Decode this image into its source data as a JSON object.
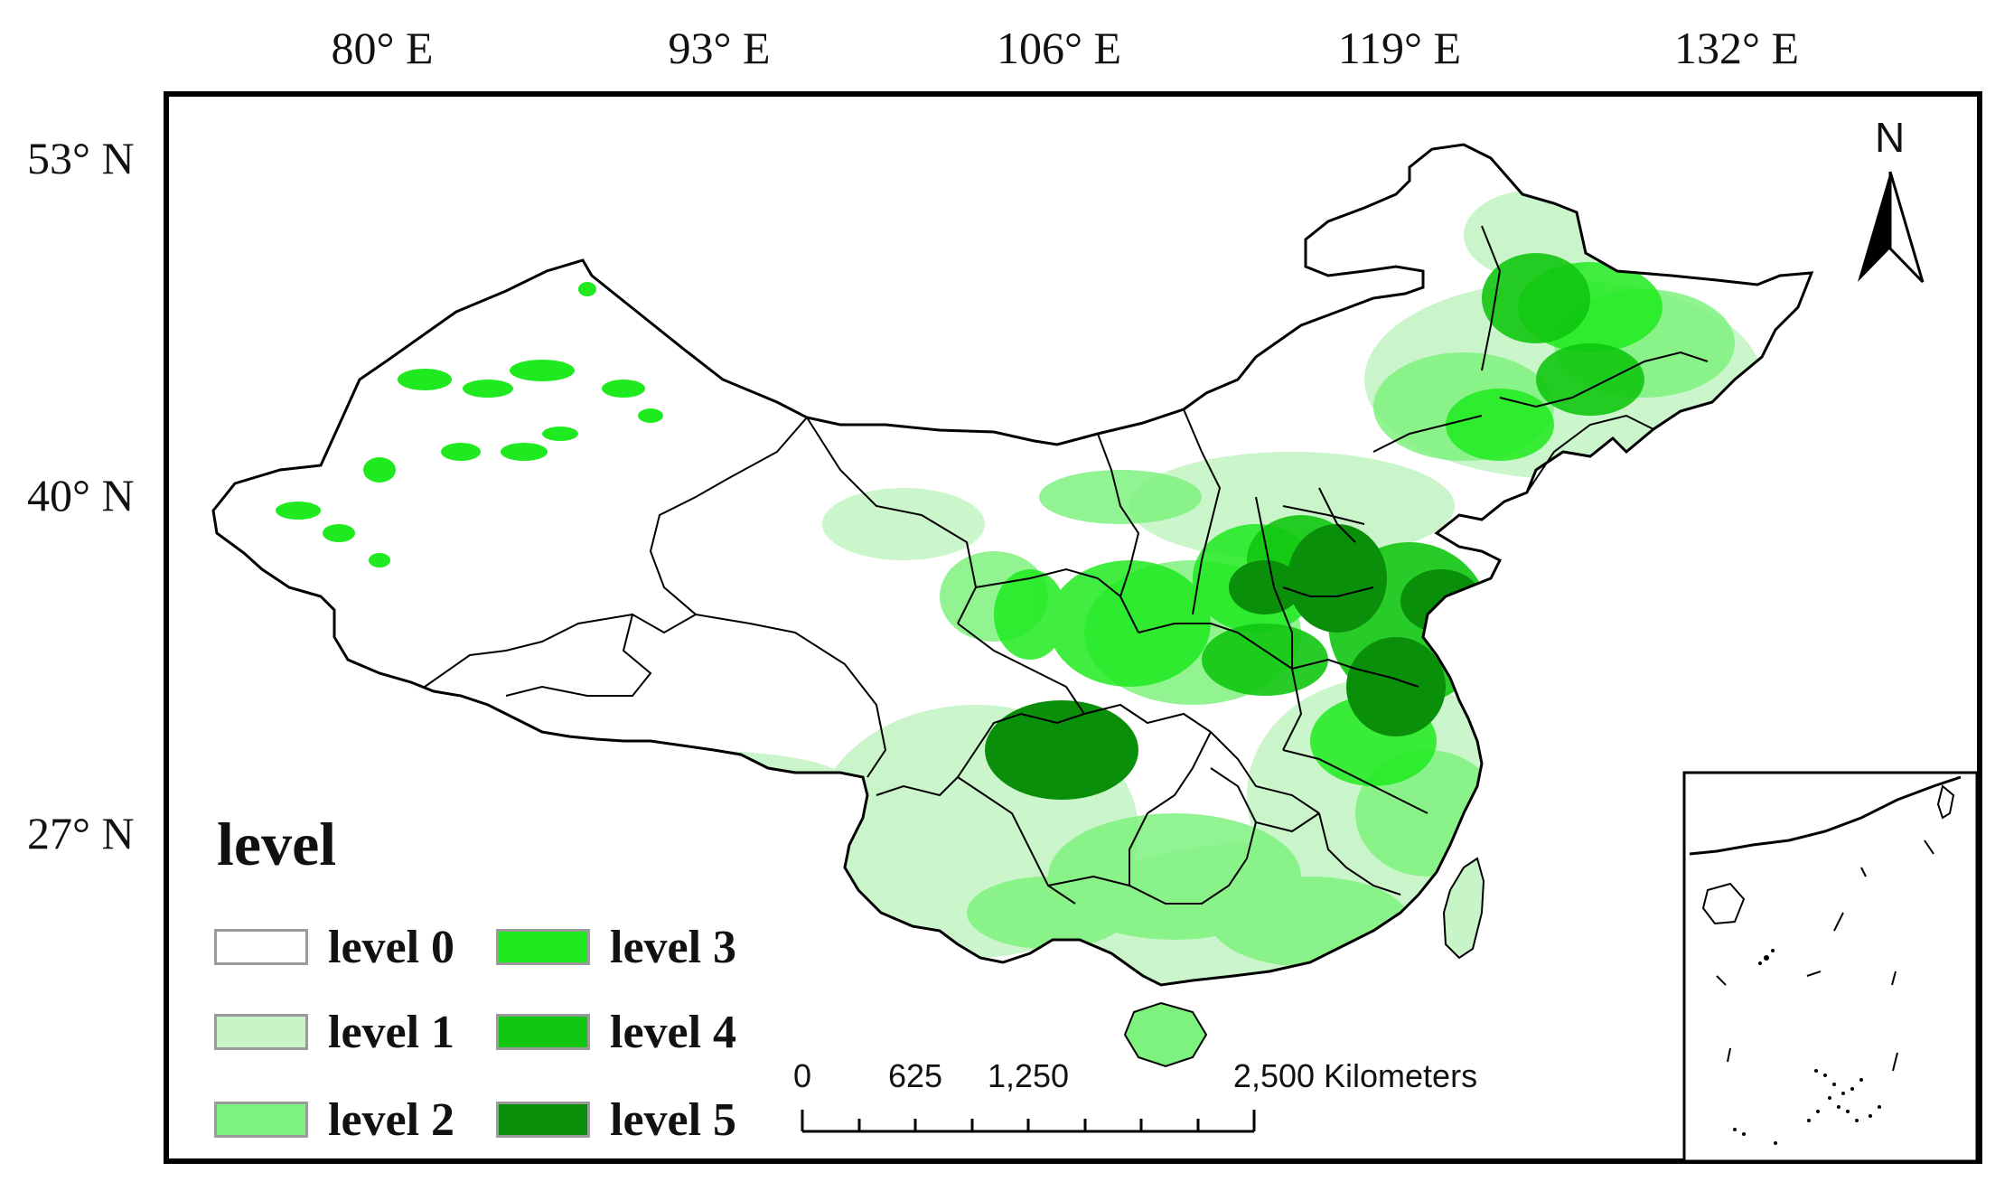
{
  "coordinates": {
    "longitudes": [
      "80° E",
      "93° E",
      "106° E",
      "119° E",
      "132° E"
    ],
    "latitudes": [
      "53° N",
      "40° N",
      "27° N"
    ]
  },
  "north_arrow": {
    "label": "N",
    "icon": "north-arrow-icon"
  },
  "legend": {
    "title": "level",
    "items": [
      {
        "label": "level 0",
        "color": "#ffffff"
      },
      {
        "label": "level 1",
        "color": "#c8f5c8"
      },
      {
        "label": "level 2",
        "color": "#7ef27e"
      },
      {
        "label": "level 3",
        "color": "#1fea1f"
      },
      {
        "label": "level 4",
        "color": "#11c711"
      },
      {
        "label": "level 5",
        "color": "#0a8f0a"
      }
    ]
  },
  "scale_bar": {
    "labels": [
      "0",
      "625",
      "1,250",
      "2,500 Kilometers"
    ]
  },
  "colors": {
    "boundary": "#000000",
    "frame": "#000000"
  }
}
